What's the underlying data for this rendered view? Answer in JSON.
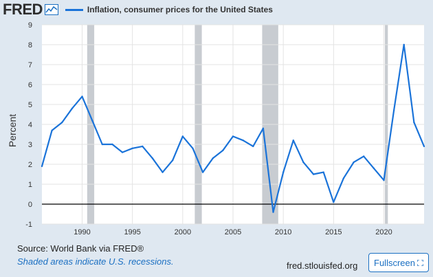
{
  "header": {
    "logo": "FRED",
    "logo_icon": "fred-chart-icon",
    "series_label": "Inflation, consumer prices for the United States"
  },
  "footer": {
    "source": "Source: World Bank via FRED®",
    "note": "Shaded areas indicate U.S. recessions.",
    "url": "fred.stlouisfed.org",
    "fullscreen_label": "Fullscreen",
    "fullscreen_icon": "expand-icon"
  },
  "colors": {
    "line": "#1a73d9",
    "recession": "#c8ccd1",
    "plot_bg": "#ffffff",
    "page_bg": "#dfe8f1",
    "grid": "#e3e3e3",
    "zero_line": "#000000"
  },
  "chart_data": {
    "type": "line",
    "title": "",
    "xlabel": "",
    "ylabel": "Percent",
    "xlim": [
      1986,
      2024
    ],
    "ylim": [
      -1,
      9
    ],
    "yticks": [
      -1,
      0,
      1,
      2,
      3,
      4,
      5,
      6,
      7,
      8,
      9
    ],
    "xticks": [
      1990,
      1995,
      2000,
      2005,
      2010,
      2015,
      2020
    ],
    "grid": true,
    "recessions": [
      [
        1990.5,
        1991.2
      ],
      [
        2001.2,
        2001.9
      ],
      [
        2007.9,
        2009.5
      ],
      [
        2020.1,
        2020.4
      ]
    ],
    "series": [
      {
        "name": "Inflation, consumer prices for the United States",
        "x": [
          1986,
          1987,
          1988,
          1989,
          1990,
          1991,
          1992,
          1993,
          1994,
          1995,
          1996,
          1997,
          1998,
          1999,
          2000,
          2001,
          2002,
          2003,
          2004,
          2005,
          2006,
          2007,
          2008,
          2009,
          2010,
          2011,
          2012,
          2013,
          2014,
          2015,
          2016,
          2017,
          2018,
          2019,
          2020,
          2021,
          2022,
          2023,
          2024
        ],
        "values": [
          1.9,
          3.7,
          4.1,
          4.8,
          5.4,
          4.2,
          3.0,
          3.0,
          2.6,
          2.8,
          2.9,
          2.3,
          1.6,
          2.2,
          3.4,
          2.8,
          1.6,
          2.3,
          2.7,
          3.4,
          3.2,
          2.9,
          3.8,
          -0.4,
          1.6,
          3.2,
          2.1,
          1.5,
          1.6,
          0.1,
          1.3,
          2.1,
          2.4,
          1.8,
          1.2,
          4.7,
          8.0,
          4.1,
          2.9
        ]
      }
    ]
  }
}
